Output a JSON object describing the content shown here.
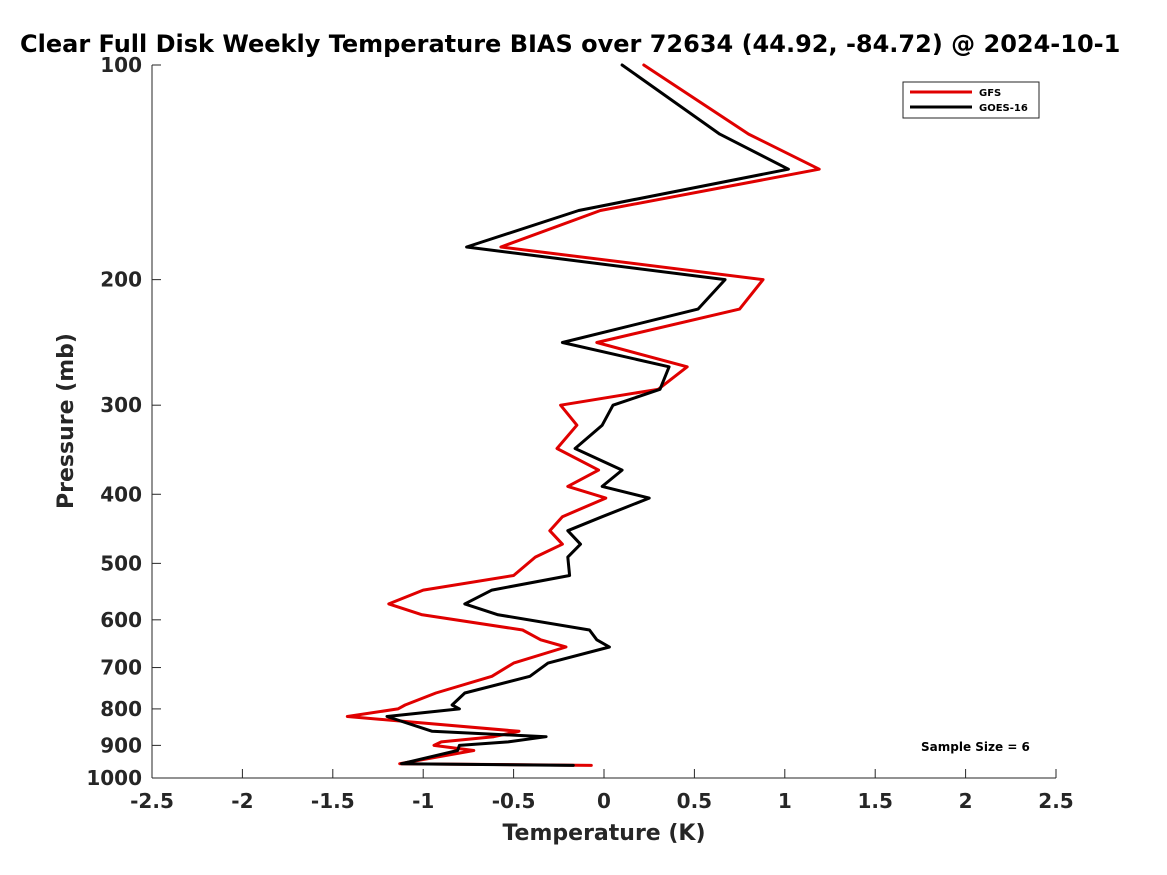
{
  "chart_data": {
    "type": "line",
    "title": "Clear Full Disk Weekly Temperature BIAS over 72634 (44.92, -84.72) @ 2024-10-1",
    "xlabel": "Temperature (K)",
    "ylabel": "Pressure (mb)",
    "xlim": [
      -2.5,
      2.5
    ],
    "ylim": [
      100,
      1000
    ],
    "y_scale": "log",
    "y_reversed": true,
    "xticks": [
      -2.5,
      -2,
      -1.5,
      -1,
      -0.5,
      0,
      0.5,
      1,
      1.5,
      2,
      2.5
    ],
    "xtick_labels": [
      "-2.5",
      "-2",
      "-1.5",
      "-1",
      "-0.5",
      "0",
      "0.5",
      "1",
      "1.5",
      "2",
      "2.5"
    ],
    "yticks": [
      100,
      200,
      300,
      400,
      500,
      600,
      700,
      800,
      900,
      1000
    ],
    "ytick_labels": [
      "100",
      "200",
      "300",
      "400",
      "500",
      "600",
      "700",
      "800",
      "900",
      "1000"
    ],
    "grid": false,
    "legend_position": "top-right",
    "annotation": "Sample Size = 6",
    "series": [
      {
        "name": "GFS",
        "color": "#e00000",
        "x": [
          0.22,
          0.8,
          1.19,
          -0.02,
          -0.57,
          0.88,
          0.75,
          -0.04,
          0.46,
          0.3,
          -0.24,
          -0.15,
          -0.26,
          -0.03,
          -0.2,
          0.01,
          -0.23,
          -0.3,
          -0.23,
          -0.38,
          -0.5,
          -1.0,
          -1.19,
          -1.01,
          -0.45,
          -0.35,
          -0.21,
          -0.5,
          -0.62,
          -0.93,
          -1.1,
          -1.14,
          -1.42,
          -0.47,
          -0.61,
          -0.9,
          -0.94,
          -0.72,
          -1.13,
          -0.07
        ],
        "y": [
          100,
          125,
          140,
          160,
          180,
          200,
          220,
          245,
          265,
          285,
          300,
          320,
          345,
          370,
          390,
          405,
          430,
          450,
          470,
          490,
          520,
          545,
          570,
          590,
          620,
          640,
          655,
          690,
          720,
          760,
          790,
          800,
          820,
          860,
          875,
          890,
          900,
          915,
          955,
          960
        ]
      },
      {
        "name": "GOES-16",
        "color": "#000000",
        "x": [
          0.1,
          0.64,
          1.02,
          -0.14,
          -0.76,
          0.67,
          0.52,
          -0.23,
          0.36,
          0.31,
          0.05,
          -0.01,
          -0.16,
          0.1,
          -0.01,
          0.25,
          -0.01,
          -0.2,
          -0.13,
          -0.2,
          -0.19,
          -0.62,
          -0.77,
          -0.59,
          -0.08,
          -0.04,
          0.03,
          -0.31,
          -0.41,
          -0.77,
          -0.84,
          -0.8,
          -1.2,
          -0.95,
          -0.32,
          -0.53,
          -0.8,
          -0.81,
          -1.12,
          -0.17
        ],
        "y": [
          100,
          125,
          140,
          160,
          180,
          200,
          220,
          245,
          265,
          285,
          300,
          320,
          345,
          370,
          390,
          405,
          430,
          450,
          470,
          490,
          520,
          545,
          570,
          590,
          620,
          640,
          655,
          690,
          720,
          760,
          790,
          800,
          820,
          860,
          875,
          890,
          900,
          915,
          955,
          960
        ]
      }
    ]
  }
}
